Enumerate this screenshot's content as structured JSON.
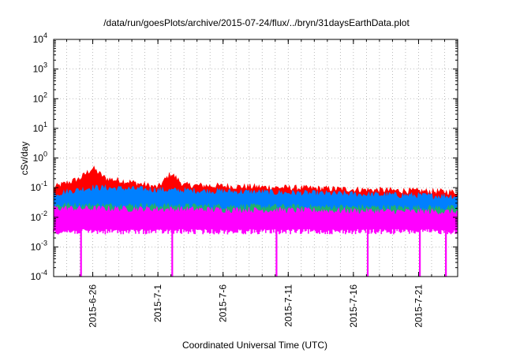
{
  "chart_data": {
    "type": "area",
    "title": "/data/run/goesPlots/archive/2015-07-24/flux/../bryn/31daysEarthData.plot",
    "xlabel": "Coordinated Universal Time (UTC)",
    "ylabel": "cSv/day",
    "y_scale": "log",
    "ylim": [
      0.0001,
      10000
    ],
    "y_ticks": [
      {
        "base": "10",
        "exp": "-4"
      },
      {
        "base": "10",
        "exp": "-3"
      },
      {
        "base": "10",
        "exp": "-2"
      },
      {
        "base": "10",
        "exp": "-1"
      },
      {
        "base": "10",
        "exp": "0"
      },
      {
        "base": "10",
        "exp": "1"
      },
      {
        "base": "10",
        "exp": "2"
      },
      {
        "base": "10",
        "exp": "3"
      },
      {
        "base": "10",
        "exp": "4"
      }
    ],
    "xlim": [
      "2015-06-23",
      "2015-07-24"
    ],
    "x_ticks": [
      "2015-6-26",
      "2015-7-1",
      "2015-7-6",
      "2015-7-11",
      "2015-7-16",
      "2015-7-21"
    ],
    "grid": true,
    "legend": "none",
    "series": [
      {
        "color": "#ff0000",
        "approx_level": [
          {
            "x": "2015-06-23",
            "y": 0.1
          },
          {
            "x": "2015-06-25",
            "y": 0.2
          },
          {
            "x": "2015-06-26",
            "y": 0.45
          },
          {
            "x": "2015-06-27",
            "y": 0.2
          },
          {
            "x": "2015-06-29",
            "y": 0.15
          },
          {
            "x": "2015-07-01",
            "y": 0.1
          },
          {
            "x": "2015-07-02",
            "y": 0.3
          },
          {
            "x": "2015-07-03",
            "y": 0.12
          },
          {
            "x": "2015-07-24",
            "y": 0.07
          }
        ]
      },
      {
        "color": "#0080ff",
        "approx_level": [
          {
            "x": "2015-06-23",
            "y": 0.06
          },
          {
            "x": "2015-06-26",
            "y": 0.1
          },
          {
            "x": "2015-07-02",
            "y": 0.08
          },
          {
            "x": "2015-07-24",
            "y": 0.05
          }
        ]
      },
      {
        "color": "#20b070",
        "approx_level": [
          {
            "x": "2015-06-23",
            "y": 0.025
          },
          {
            "x": "2015-07-24",
            "y": 0.02
          }
        ]
      },
      {
        "color": "#ff00ff",
        "approx_level": [
          {
            "x": "2015-06-23",
            "y": 0.02
          },
          {
            "x": "2015-07-24",
            "y": 0.015
          }
        ],
        "floor": 0.004,
        "dropouts": [
          "2015-06-25",
          "2015-07-02",
          "2015-07-10",
          "2015-07-17",
          "2015-07-21",
          "2015-07-23"
        ]
      }
    ]
  }
}
